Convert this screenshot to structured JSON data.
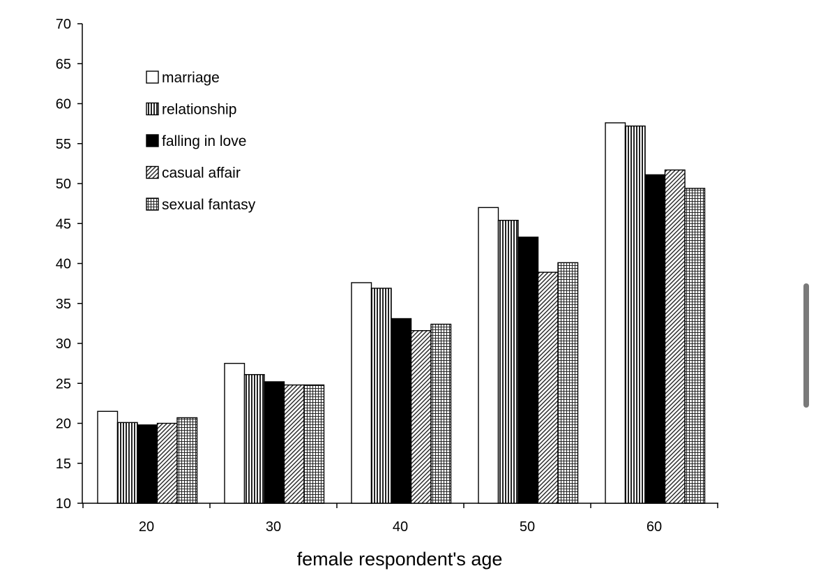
{
  "chart_data": {
    "type": "bar",
    "title": "",
    "xlabel": "female respondent's age",
    "ylabel": "",
    "categories": [
      "20",
      "30",
      "40",
      "50",
      "60"
    ],
    "ylim": [
      10,
      70
    ],
    "yticks": [
      10,
      15,
      20,
      25,
      30,
      35,
      40,
      45,
      50,
      55,
      60,
      65,
      70
    ],
    "grid": false,
    "legend_position": "top-left",
    "series": [
      {
        "name": "marriage",
        "values": [
          21.5,
          27.5,
          37.6,
          47.0,
          57.6
        ]
      },
      {
        "name": "relationship",
        "values": [
          20.1,
          26.1,
          36.9,
          45.4,
          57.2
        ]
      },
      {
        "name": "falling in love",
        "values": [
          19.8,
          25.2,
          33.1,
          43.3,
          51.1
        ]
      },
      {
        "name": "casual affair",
        "values": [
          20.0,
          24.8,
          31.6,
          38.9,
          51.7
        ]
      },
      {
        "name": "sexual fantasy",
        "values": [
          20.7,
          24.8,
          32.4,
          40.1,
          49.4
        ]
      }
    ]
  }
}
